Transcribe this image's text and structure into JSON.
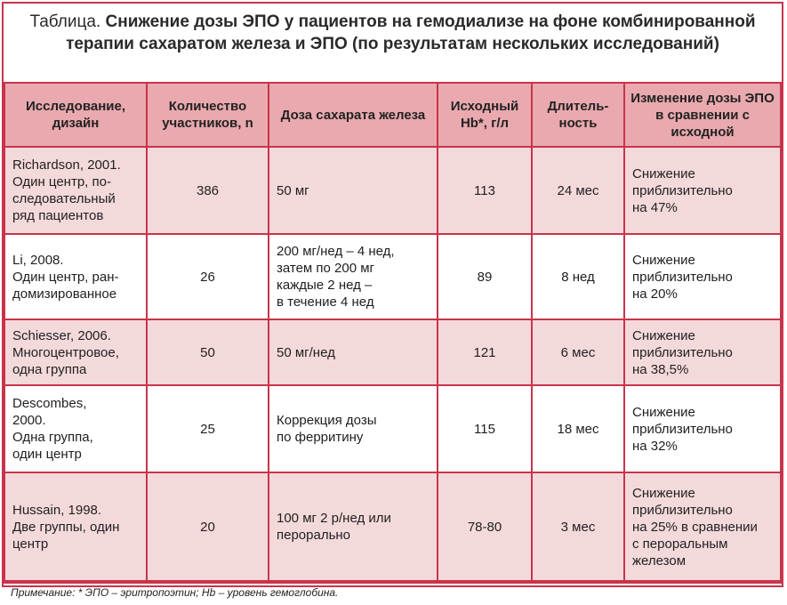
{
  "title": {
    "lead": "Таблица. ",
    "main": "Снижение дозы ЭПО у пациентов на гемодиализе на фоне комбинированной терапии сахаратом железа и ЭПО (по результатам нескольких исследований)"
  },
  "headers": {
    "study": "Исследование, дизайн",
    "participants": "Количество участников, n",
    "dose": "Доза сахарата железа",
    "hb": "Исходный Hb*, г/л",
    "duration": "Длитель- ность",
    "change": "Изменение дозы ЭПО в сравнении с исходной"
  },
  "rows": [
    {
      "study": "Richardson, 2001.\nОдин центр, по-\nследовательный\nряд пациентов",
      "participants": "386",
      "dose": "50 мг",
      "hb": "113",
      "duration": "24 мес",
      "change": "Снижение\nприблизительно\nна 47%"
    },
    {
      "study": "Li, 2008.\nОдин центр, ран-\nдомизированное",
      "participants": "26",
      "dose": "200 мг/нед – 4 нед,\nзатем по 200 мг\nкаждые 2 нед –\nв течение 4 нед",
      "hb": "89",
      "duration": "8 нед",
      "change": "Снижение\nприблизительно\nна 20%"
    },
    {
      "study": "Schiesser, 2006.\nМногоцентровое,\nодна группа",
      "participants": "50",
      "dose": "50 мг/нед",
      "hb": "121",
      "duration": "6 мес",
      "change": "Снижение\nприблизительно\nна 38,5%"
    },
    {
      "study": "Descombes,\n2000.\nОдна группа,\nодин центр",
      "participants": "25",
      "dose": "Коррекция дозы\nпо ферритину",
      "hb": "115",
      "duration": "18 мес",
      "change": "Снижение\nприблизительно\nна 32%"
    },
    {
      "study": "Hussain, 1998.\nДве группы, один\nцентр",
      "participants": "20",
      "dose": "100 мг 2 р/нед или\nперорально",
      "hb": "78-80",
      "duration": "3 мес",
      "change": "Снижение\nприблизительно\nна 25% в сравнении\nс пероральным\nжелезом"
    }
  ],
  "note": {
    "label": "Примечание:",
    "text": " * ЭПО – эритропоэтин; Hb – уровень гемоглобина."
  },
  "colors": {
    "border": "#c8344b",
    "header_bg": "#e9a9af",
    "row_alt_bg": "#f4d9db"
  }
}
